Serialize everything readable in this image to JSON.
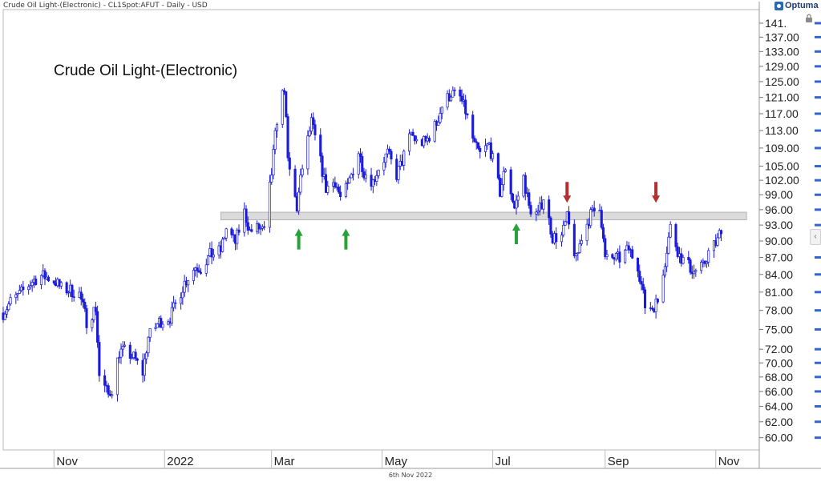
{
  "header": {
    "title": "Crude Oil Light-(Electronic) - CL1Spot:AFUT - Daily - USD",
    "brand": "Optuma"
  },
  "footer": {
    "date": "6th Nov 2022"
  },
  "chart_data": {
    "type": "candlestick",
    "title": "Crude Oil Light-(Electronic)",
    "x_tick_labels": [
      "Nov",
      "2022",
      "Mar",
      "May",
      "Jul",
      "Sep",
      "Nov"
    ],
    "y_tick_labels": [
      "141.",
      "137.00",
      "133.00",
      "129.00",
      "125.00",
      "121.00",
      "117.00",
      "113.00",
      "109.00",
      "105.00",
      "102.00",
      "99.00",
      "96.00",
      "93.00",
      "90.00",
      "87.00",
      "84.00",
      "81.00",
      "78.00",
      "75.00",
      "72.00",
      "70.00",
      "68.00",
      "66.00",
      "64.00",
      "62.00",
      "60.00"
    ],
    "y_scale": "log",
    "ylim": [
      58.5,
      145
    ],
    "xlim": [
      "2021-10-04",
      "2022-11-25"
    ],
    "resistance_band": {
      "low": 94.0,
      "high": 95.5,
      "from": "2022-02-01",
      "to": "2022-11-18"
    },
    "annotations": [
      {
        "type": "arrow-up",
        "color": "#27a23a",
        "date": "2022-03-16",
        "price": 90.5
      },
      {
        "type": "arrow-up",
        "color": "#27a23a",
        "date": "2022-04-11",
        "price": 90.5
      },
      {
        "type": "arrow-up",
        "color": "#27a23a",
        "date": "2022-07-14",
        "price": 91.5
      },
      {
        "type": "arrow-down",
        "color": "#b23030",
        "date": "2022-08-11",
        "price": 98.5
      },
      {
        "type": "arrow-down",
        "color": "#b23030",
        "date": "2022-09-29",
        "price": 98.5
      }
    ],
    "colors": {
      "candles": "#1a1adb",
      "band": "#cfcfcf",
      "band_border": "#a8a8a8"
    },
    "closes": [
      [
        "2021-10-04",
        77.6
      ],
      [
        "2021-10-08",
        79.4
      ],
      [
        "2021-10-13",
        80.6
      ],
      [
        "2021-10-18",
        82.2
      ],
      [
        "2021-10-21",
        83.1
      ],
      [
        "2021-10-25",
        83.8
      ],
      [
        "2021-10-29",
        83.4
      ],
      [
        "2021-11-02",
        82.7
      ],
      [
        "2021-11-05",
        81.6
      ],
      [
        "2021-11-10",
        81.3
      ],
      [
        "2021-11-15",
        80.7
      ],
      [
        "2021-11-19",
        76.3
      ],
      [
        "2021-11-24",
        78.4
      ],
      [
        "2021-11-26",
        68.2
      ],
      [
        "2021-12-01",
        65.5
      ],
      [
        "2021-12-03",
        66.4
      ],
      [
        "2021-12-07",
        71.6
      ],
      [
        "2021-12-10",
        71.7
      ],
      [
        "2021-12-15",
        70.8
      ],
      [
        "2021-12-20",
        68.6
      ],
      [
        "2021-12-23",
        73.8
      ],
      [
        "2021-12-29",
        76.2
      ],
      [
        "2022-01-04",
        76.9
      ],
      [
        "2022-01-07",
        78.9
      ],
      [
        "2022-01-12",
        82.6
      ],
      [
        "2022-01-18",
        85.4
      ],
      [
        "2022-01-21",
        85.1
      ],
      [
        "2022-01-26",
        87.4
      ],
      [
        "2022-02-01",
        88.2
      ],
      [
        "2022-02-04",
        92.3
      ],
      [
        "2022-02-09",
        89.7
      ],
      [
        "2022-02-14",
        95.5
      ],
      [
        "2022-02-17",
        91.8
      ],
      [
        "2022-02-22",
        92.4
      ],
      [
        "2022-02-25",
        91.6
      ],
      [
        "2022-03-01",
        103.4
      ],
      [
        "2022-03-04",
        115.7
      ],
      [
        "2022-03-08",
        123.7
      ],
      [
        "2022-03-10",
        106.0
      ],
      [
        "2022-03-15",
        96.4
      ],
      [
        "2022-03-18",
        104.7
      ],
      [
        "2022-03-23",
        114.9
      ],
      [
        "2022-03-28",
        105.9
      ],
      [
        "2022-03-31",
        100.3
      ],
      [
        "2022-04-05",
        101.9
      ],
      [
        "2022-04-08",
        98.3
      ],
      [
        "2022-04-12",
        100.6
      ],
      [
        "2022-04-18",
        108.2
      ],
      [
        "2022-04-21",
        103.8
      ],
      [
        "2022-04-26",
        101.7
      ],
      [
        "2022-04-29",
        104.7
      ],
      [
        "2022-05-04",
        107.8
      ],
      [
        "2022-05-09",
        103.1
      ],
      [
        "2022-05-12",
        106.1
      ],
      [
        "2022-05-17",
        112.4
      ],
      [
        "2022-05-20",
        110.3
      ],
      [
        "2022-05-25",
        110.3
      ],
      [
        "2022-05-31",
        114.7
      ],
      [
        "2022-06-03",
        118.9
      ],
      [
        "2022-06-08",
        122.1
      ],
      [
        "2022-06-13",
        120.9
      ],
      [
        "2022-06-16",
        117.6
      ],
      [
        "2022-06-21",
        109.5
      ],
      [
        "2022-06-24",
        107.6
      ],
      [
        "2022-06-29",
        109.8
      ],
      [
        "2022-07-05",
        99.5
      ],
      [
        "2022-07-08",
        104.8
      ],
      [
        "2022-07-13",
        96.3
      ],
      [
        "2022-07-18",
        102.6
      ],
      [
        "2022-07-21",
        96.4
      ],
      [
        "2022-07-26",
        94.9
      ],
      [
        "2022-07-29",
        98.6
      ],
      [
        "2022-08-03",
        90.7
      ],
      [
        "2022-08-08",
        90.8
      ],
      [
        "2022-08-11",
        94.3
      ],
      [
        "2022-08-16",
        86.5
      ],
      [
        "2022-08-19",
        90.8
      ],
      [
        "2022-08-24",
        95.0
      ],
      [
        "2022-08-29",
        97.0
      ],
      [
        "2022-09-01",
        86.6
      ],
      [
        "2022-09-06",
        86.9
      ],
      [
        "2022-09-09",
        86.8
      ],
      [
        "2022-09-14",
        88.5
      ],
      [
        "2022-09-19",
        85.7
      ],
      [
        "2022-09-23",
        78.7
      ],
      [
        "2022-09-27",
        78.5
      ],
      [
        "2022-09-30",
        79.5
      ],
      [
        "2022-10-04",
        86.5
      ],
      [
        "2022-10-07",
        92.6
      ],
      [
        "2022-10-12",
        87.3
      ],
      [
        "2022-10-17",
        85.5
      ],
      [
        "2022-10-20",
        84.5
      ],
      [
        "2022-10-25",
        85.3
      ],
      [
        "2022-10-28",
        87.9
      ],
      [
        "2022-11-02",
        90.0
      ],
      [
        "2022-11-04",
        92.6
      ]
    ]
  }
}
